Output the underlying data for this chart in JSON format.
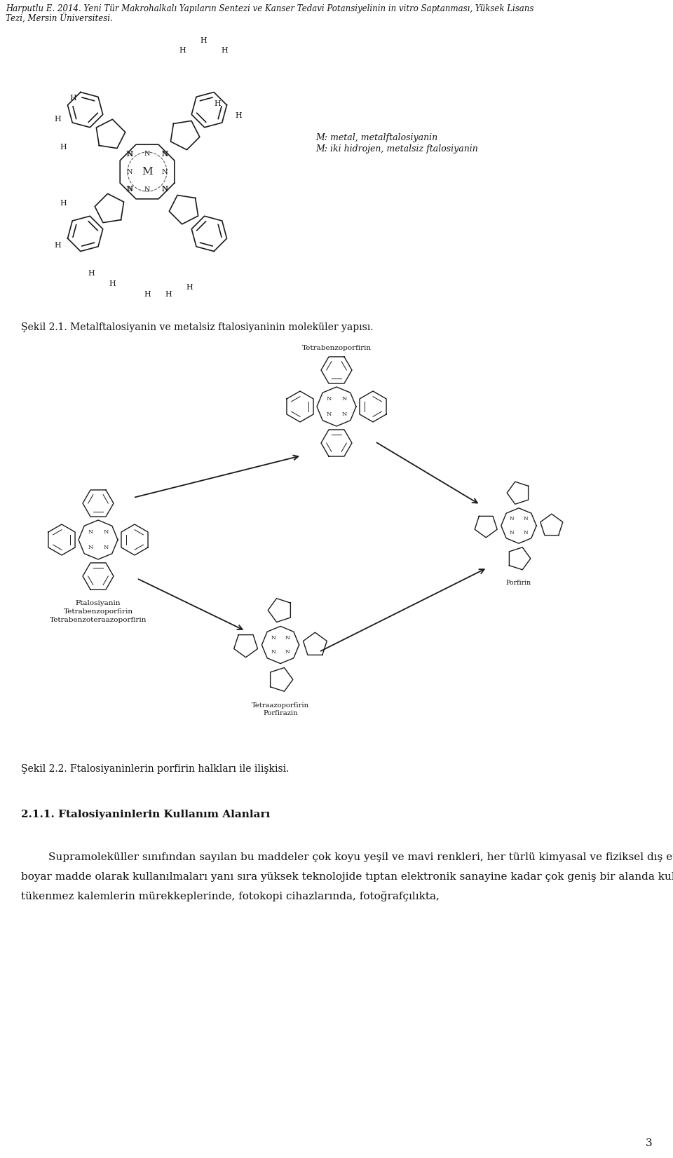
{
  "background_color": "#ffffff",
  "page_width": 9.6,
  "page_height": 16.52,
  "dpi": 100,
  "header_line1": "Harputlu E. 2014. İYeni Tür Makrohalkalı Yapıların Sentezi ve Kanser Tedavi Potansiyelinin in vitro Saptan ması, Yüksek Lisans",
  "header_line2": "Tezi, Mersin Üniversitesi.",
  "header_fontsize": 8.5,
  "caption1": "Şekil 2.1. Metalftalosiyanin ve metalsiz ftalosiyaninin moleküler yapısı.",
  "caption1_fontsize": 10,
  "caption2": "Şekil 2.2. Ftalosiyaninlerin porfirin halkları ile ilişkisi.",
  "caption2_fontsize": 10,
  "section_title": "2.1.1. Ftalosiyaninlerin Kullanım Alanları",
  "section_title_fontsize": 11,
  "body_lines": [
    "        Supramolекüller sınıfından sayılan bu maddeler çok koyu yeşil ve mavi renkleri, her türlü kimyasal ve fiziksel dış etkenlere karşı sağlamlığı ile pigment ve boyar madde olarak kullanılmaları yanı sıra yüksek teknolojide tıptan elektronik sanayine kadar çok geniş bir alanda kullanım imkânı oluşturmaktadır. Şimdilerde, tükenmez kalemlerin mürekkeplerinde, fotokopi cihazlarında, fotoğrafçılıkta,"
  ],
  "body_fontsize": 11,
  "page_number": "3",
  "fig1_label_line1": "M: metal, metalftalosiyanin",
  "fig1_label_line2": "M: iki hidrojen, metalsiz ftalosiyanin",
  "fig1_label_fontsize": 9,
  "fig2_label_tetrabenzo": "Tetrabenzoporfirin",
  "fig2_label_ftalos": "Ftalosiyanin",
  "fig2_label_tetrabenzoporf": "Tetrabenzoporfirin",
  "fig2_label_tetrabenzotetraaz": "Tetrabenzoteraazoporfirin",
  "fig2_label_tetraaz1": "Tetraazoporfirin",
  "fig2_label_tetraaz2": "Porfirazin",
  "fig2_label_porfirin": "Porfirin",
  "label_fontsize": 8
}
